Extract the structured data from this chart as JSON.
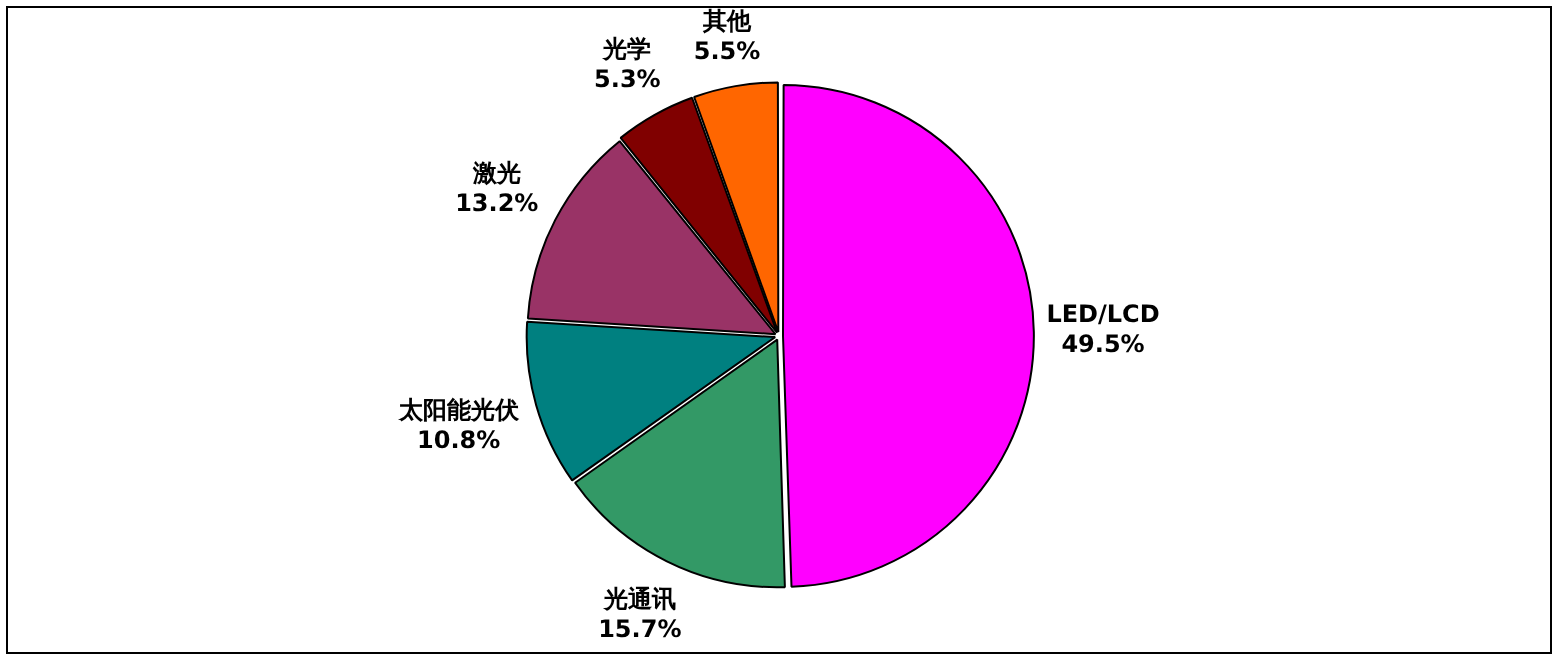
{
  "chart_data": {
    "type": "pie",
    "categories": [
      "LED/LCD",
      "光通讯",
      "太阳能光伏",
      "激光",
      "光学",
      "其他"
    ],
    "values": [
      49.5,
      15.7,
      10.8,
      13.2,
      5.3,
      5.5
    ],
    "value_labels": [
      "49.5%",
      "15.7%",
      "10.8%",
      "13.2%",
      "5.3%",
      "5.5%"
    ],
    "colors": [
      "#ff00ff",
      "#339966",
      "#008080",
      "#993366",
      "#800000",
      "#ff6600"
    ],
    "legend": false
  }
}
